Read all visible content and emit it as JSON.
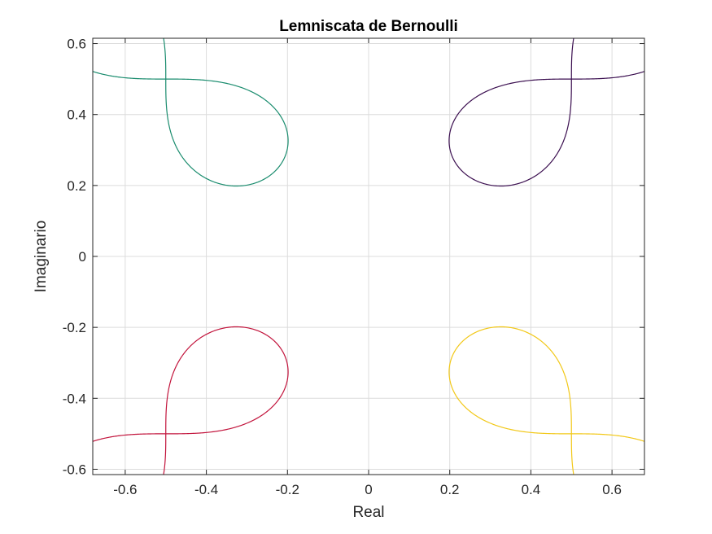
{
  "chart_data": {
    "type": "line",
    "title": "Lemniscata de Bernoulli",
    "xlabel": "Real",
    "ylabel": "Imaginario",
    "xlim": [
      -0.68,
      0.68
    ],
    "ylim": [
      -0.615,
      0.615
    ],
    "xticks": [
      -0.6,
      -0.4,
      -0.2,
      0,
      0.2,
      0.4,
      0.6
    ],
    "xtick_labels": [
      "-0.6",
      "-0.4",
      "-0.2",
      "0",
      "0.2",
      "0.4",
      "0.6"
    ],
    "yticks": [
      -0.6,
      -0.4,
      -0.2,
      0,
      0.2,
      0.4,
      0.6
    ],
    "ytick_labels": [
      "-0.6",
      "-0.4",
      "-0.2",
      "0",
      "0.2",
      "0.4",
      "0.6"
    ],
    "grid": true,
    "series": [
      {
        "center": [
          0.5,
          0.5
        ],
        "color": "#3b0f50"
      },
      {
        "center": [
          -0.5,
          0.5
        ],
        "color": "#1a8c6e"
      },
      {
        "center": [
          -0.5,
          -0.5
        ],
        "color": "#c2143c"
      },
      {
        "center": [
          0.5,
          -0.5
        ],
        "color": "#f2c818"
      }
    ]
  }
}
